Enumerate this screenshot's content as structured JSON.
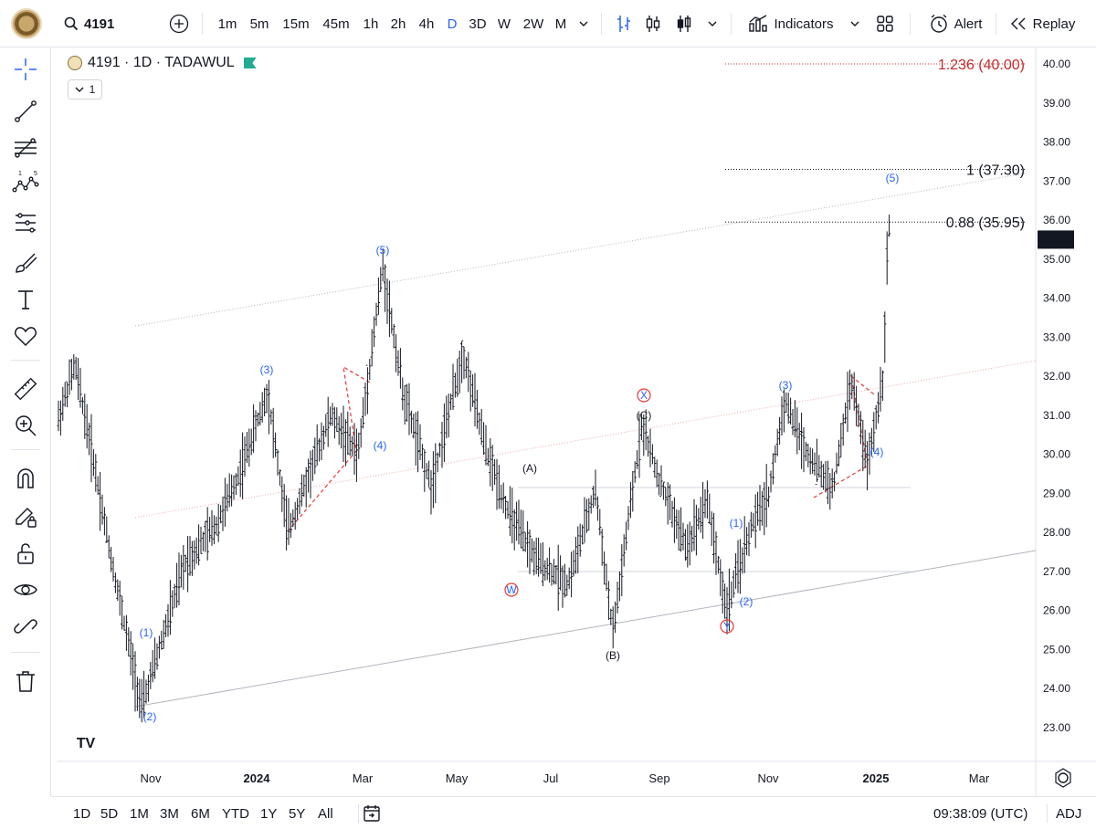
{
  "toolbar": {
    "symbol": "4191",
    "intervals": [
      "1m",
      "5m",
      "15m",
      "45m",
      "1h",
      "2h",
      "4h",
      "D",
      "3D",
      "W",
      "2W",
      "M"
    ],
    "active_interval": "D",
    "indicators_label": "Indicators",
    "alert_label": "Alert",
    "replay_label": "Replay"
  },
  "legend": {
    "title": "4191 · 1D · TADAWUL",
    "collapse_count": "1"
  },
  "price_axis": {
    "ticks": [
      "40.00",
      "39.00",
      "38.00",
      "37.00",
      "36.00",
      "35.00",
      "34.00",
      "33.00",
      "32.00",
      "31.00",
      "30.00",
      "29.00",
      "28.00",
      "27.00",
      "26.00",
      "25.00",
      "24.00",
      "23.00"
    ],
    "last_price": "35.50"
  },
  "time_axis": {
    "ticks": [
      "Nov",
      "2024",
      "Mar",
      "May",
      "Jul",
      "Sep",
      "Nov",
      "2025",
      "Mar"
    ]
  },
  "fibonacci": [
    {
      "label": "1.236 (40.00)",
      "color": "#c62828"
    },
    {
      "label": "1 (37.30)",
      "color": "#131722"
    },
    {
      "label": "0.88 (35.95)",
      "color": "#131722"
    }
  ],
  "wave_labels": {
    "blue": [
      "(1)",
      "(2)",
      "(3)",
      "(4)",
      "(5)",
      "(1)",
      "(2)",
      "(3)",
      "(4)",
      "(5)"
    ],
    "black": [
      "(A)",
      "(B)",
      "(C)"
    ],
    "red": [
      "W",
      "X",
      "Y"
    ]
  },
  "bottom": {
    "ranges": [
      "1D",
      "5D",
      "1M",
      "3M",
      "6M",
      "YTD",
      "1Y",
      "5Y",
      "All"
    ],
    "clock": "09:38:09 (UTC)",
    "adj": "ADJ"
  },
  "colors": {
    "accent": "#2962ff",
    "red_label": "#e53935",
    "dashed_red": "#e53935"
  },
  "watermark": "TV",
  "chart_data": {
    "type": "ohlc",
    "symbol": "4191",
    "interval": "1D",
    "ylim": [
      23.0,
      40.0
    ],
    "x": [
      "Nov",
      "2024",
      "Mar",
      "May",
      "Jul",
      "Sep",
      "Nov",
      "2025",
      "Mar"
    ],
    "swing_points": [
      {
        "label": "(2)",
        "price": 23.5
      },
      {
        "label": "(3)",
        "price": 31.6
      },
      {
        "label": "(4)",
        "price": 28.0
      },
      {
        "label": "(5)",
        "price": 34.8
      },
      {
        "label": "(B)",
        "price": 25.4
      },
      {
        "label": "(C)",
        "price": 30.8
      },
      {
        "label": "Y",
        "price": 26.0
      },
      {
        "label": "(3)",
        "price": 31.4
      },
      {
        "label": "(4)",
        "price": 29.7
      },
      {
        "label": "last",
        "price": 35.5
      }
    ],
    "fib_levels": [
      {
        "ratio": 1.236,
        "price": 40.0
      },
      {
        "ratio": 1.0,
        "price": 37.3
      },
      {
        "ratio": 0.88,
        "price": 35.95
      }
    ],
    "last_price": 35.5
  }
}
